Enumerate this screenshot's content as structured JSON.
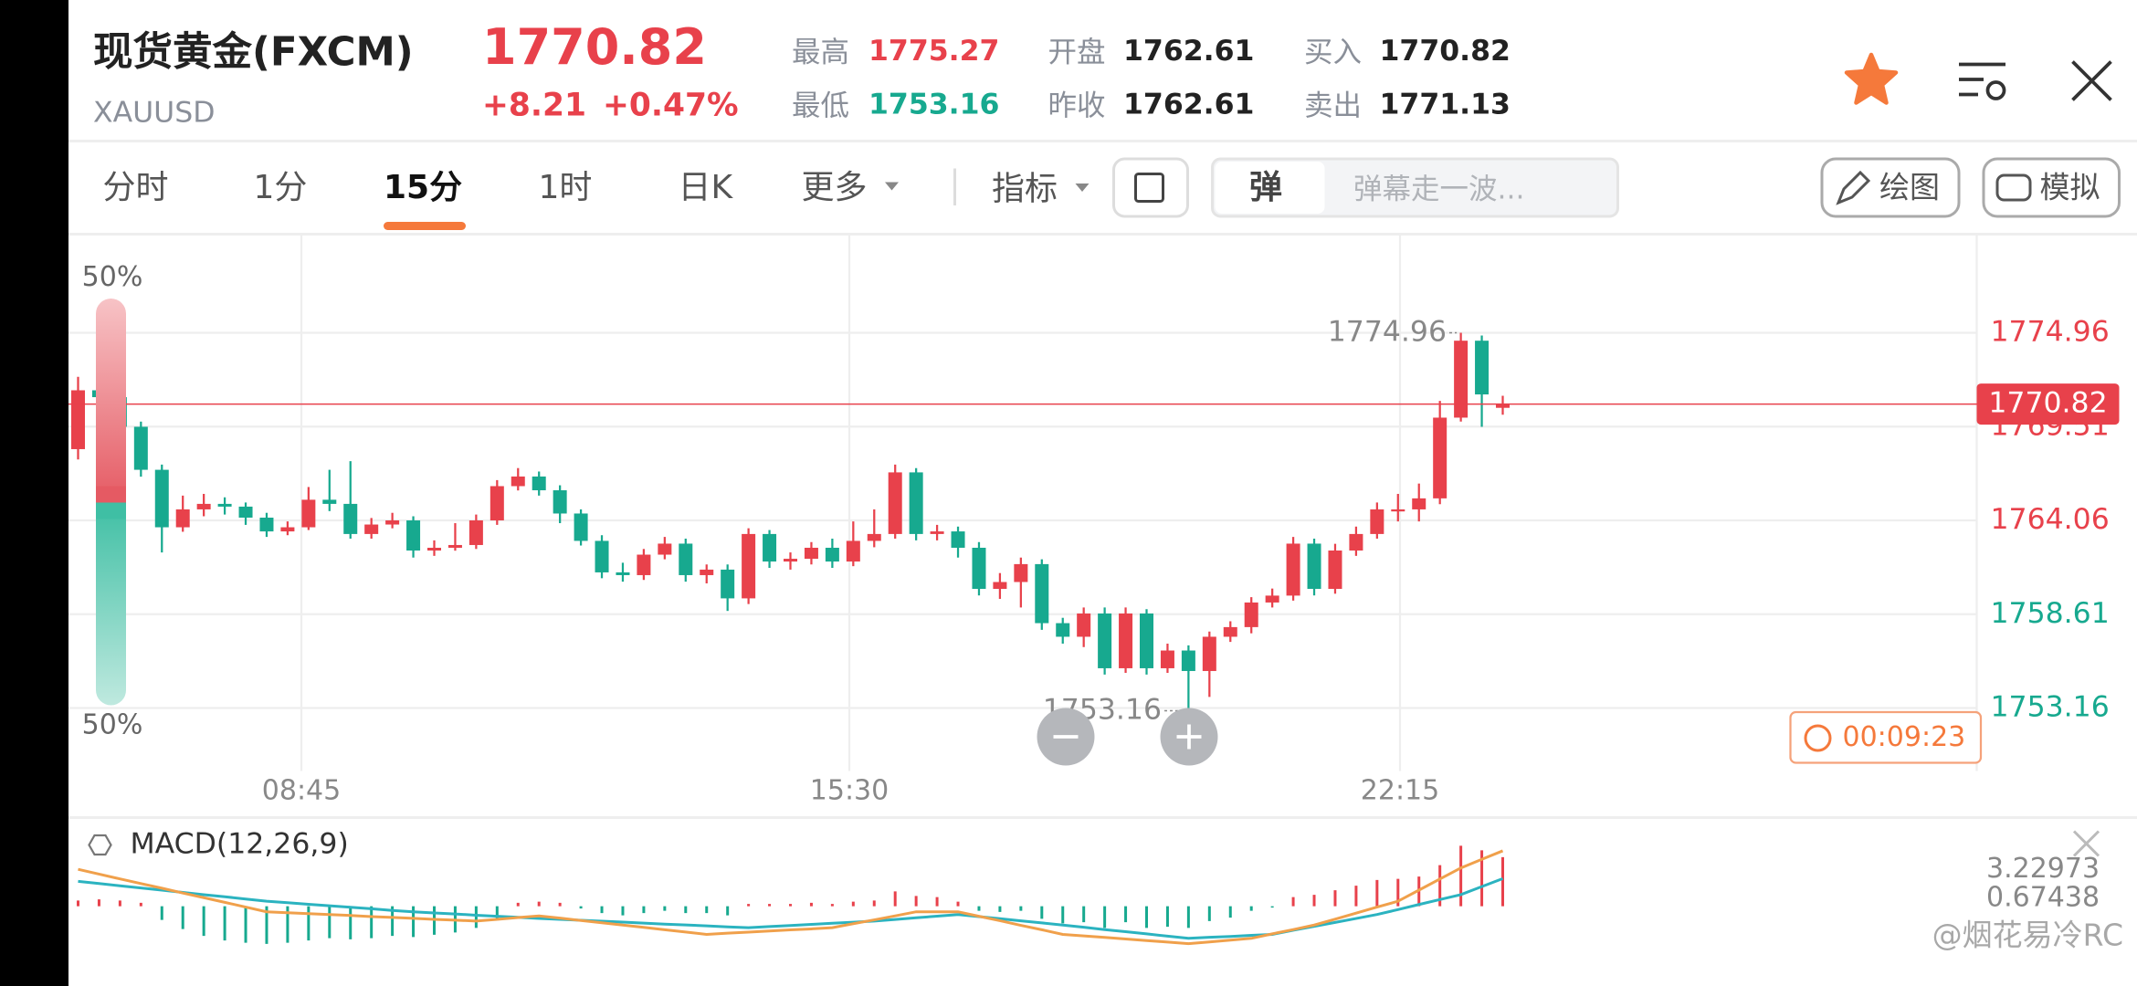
{
  "header": {
    "name": "现货黄金(FXCM)",
    "symbol": "XAUUSD",
    "price": "1770.82",
    "change": "+8.21",
    "change_pct": "+0.47%",
    "stats": [
      {
        "label": "最高",
        "value": "1775.27"
      },
      {
        "label": "最低",
        "value": "1753.16"
      },
      {
        "label": "开盘",
        "value": "1762.61"
      },
      {
        "label": "昨收",
        "value": "1762.61"
      },
      {
        "label": "买入",
        "value": "1770.82"
      },
      {
        "label": "卖出",
        "value": "1771.13"
      }
    ]
  },
  "tabs": [
    "分时",
    "1分",
    "15分",
    "1时",
    "日K",
    "更多"
  ],
  "active_tab": 2,
  "toolbar": {
    "indicator": "指标",
    "danmaku_icon": "弹",
    "danmaku_placeholder": "弹幕走一波...",
    "draw": "绘图",
    "simulate": "模拟"
  },
  "chart": {
    "left_labels": [
      "50%",
      "50%"
    ],
    "ylim": [
      1749.5,
      1780.61
    ],
    "yticks": [
      1774.96,
      1769.51,
      1764.06,
      1758.61,
      1753.16
    ],
    "grid": true,
    "current_price": 1770.82,
    "prev_close": 1762.61,
    "up_color": "#e8414b",
    "down_color": "#17a98f",
    "high_label": "1774.96",
    "low_label": "1753.16",
    "timer": "00:09:23",
    "time_labels": [
      "08:45",
      "15:30",
      "22:15"
    ],
    "candles": [
      [
        1768.2,
        1772.4,
        1767.6,
        1771.62
      ],
      [
        1771.62,
        1771.9,
        1770.9,
        1771.22
      ],
      [
        1771.22,
        1771.5,
        1769.1,
        1769.5
      ],
      [
        1769.5,
        1769.8,
        1766.6,
        1767.0
      ],
      [
        1767.0,
        1767.3,
        1762.2,
        1763.66
      ],
      [
        1763.66,
        1765.5,
        1763.4,
        1764.7
      ],
      [
        1764.7,
        1765.6,
        1764.3,
        1765.02
      ],
      [
        1765.02,
        1765.4,
        1764.4,
        1764.86
      ],
      [
        1764.86,
        1765.1,
        1763.8,
        1764.22
      ],
      [
        1764.22,
        1764.5,
        1763.1,
        1763.42
      ],
      [
        1763.42,
        1764.0,
        1763.2,
        1763.66
      ],
      [
        1763.66,
        1766.0,
        1763.5,
        1765.26
      ],
      [
        1765.26,
        1767.0,
        1764.6,
        1765.02
      ],
      [
        1765.02,
        1767.5,
        1763.0,
        1763.27
      ],
      [
        1763.27,
        1764.2,
        1763.0,
        1763.82
      ],
      [
        1763.82,
        1764.5,
        1763.6,
        1764.06
      ],
      [
        1764.06,
        1764.3,
        1761.9,
        1762.31
      ],
      [
        1762.31,
        1762.9,
        1762.0,
        1762.47
      ],
      [
        1762.47,
        1763.9,
        1762.3,
        1762.63
      ],
      [
        1762.63,
        1764.4,
        1762.4,
        1764.06
      ],
      [
        1764.06,
        1766.4,
        1763.8,
        1766.05
      ],
      [
        1766.05,
        1767.1,
        1765.8,
        1766.61
      ],
      [
        1766.61,
        1766.9,
        1765.5,
        1765.81
      ],
      [
        1765.81,
        1766.1,
        1763.9,
        1764.46
      ],
      [
        1764.46,
        1764.7,
        1762.6,
        1762.87
      ],
      [
        1762.87,
        1763.2,
        1760.7,
        1761.04
      ],
      [
        1761.04,
        1761.6,
        1760.5,
        1760.88
      ],
      [
        1760.88,
        1762.4,
        1760.6,
        1762.07
      ],
      [
        1762.07,
        1763.1,
        1761.8,
        1762.71
      ],
      [
        1762.71,
        1763.0,
        1760.5,
        1760.88
      ],
      [
        1760.88,
        1761.5,
        1760.4,
        1761.2
      ],
      [
        1761.2,
        1761.5,
        1758.8,
        1759.53
      ],
      [
        1759.53,
        1763.6,
        1759.2,
        1763.27
      ],
      [
        1763.27,
        1763.5,
        1761.3,
        1761.67
      ],
      [
        1761.67,
        1762.2,
        1761.2,
        1761.83
      ],
      [
        1761.83,
        1762.8,
        1761.5,
        1762.47
      ],
      [
        1762.47,
        1763.0,
        1761.3,
        1761.67
      ],
      [
        1761.67,
        1764.0,
        1761.4,
        1762.87
      ],
      [
        1762.87,
        1764.7,
        1762.5,
        1763.27
      ],
      [
        1763.27,
        1767.3,
        1763.0,
        1766.85
      ],
      [
        1766.85,
        1767.1,
        1762.9,
        1763.27
      ],
      [
        1763.27,
        1763.8,
        1762.9,
        1763.42
      ],
      [
        1763.42,
        1763.7,
        1761.9,
        1762.47
      ],
      [
        1762.47,
        1762.8,
        1759.7,
        1760.08
      ],
      [
        1760.08,
        1761.0,
        1759.5,
        1760.48
      ],
      [
        1760.48,
        1761.9,
        1759.0,
        1761.52
      ],
      [
        1761.52,
        1761.8,
        1757.7,
        1758.09
      ],
      [
        1758.09,
        1758.4,
        1756.9,
        1757.3
      ],
      [
        1757.3,
        1759.0,
        1756.7,
        1758.65
      ],
      [
        1758.65,
        1759.0,
        1755.1,
        1755.47
      ],
      [
        1755.47,
        1759.0,
        1755.2,
        1758.65
      ],
      [
        1758.65,
        1758.9,
        1755.1,
        1755.47
      ],
      [
        1755.47,
        1756.9,
        1755.2,
        1756.5
      ],
      [
        1756.5,
        1756.8,
        1753.16,
        1755.31
      ],
      [
        1755.31,
        1757.6,
        1753.8,
        1757.3
      ],
      [
        1757.3,
        1758.2,
        1757.0,
        1757.86
      ],
      [
        1757.86,
        1759.6,
        1757.5,
        1759.29
      ],
      [
        1759.29,
        1760.1,
        1759.0,
        1759.69
      ],
      [
        1759.69,
        1763.1,
        1759.4,
        1762.71
      ],
      [
        1762.71,
        1763.0,
        1759.7,
        1760.08
      ],
      [
        1760.08,
        1762.7,
        1759.8,
        1762.31
      ],
      [
        1762.31,
        1763.7,
        1762.0,
        1763.27
      ],
      [
        1763.27,
        1765.1,
        1763.0,
        1764.7
      ],
      [
        1764.7,
        1765.6,
        1764.0,
        1764.7
      ],
      [
        1764.7,
        1766.2,
        1764.0,
        1765.34
      ],
      [
        1765.34,
        1771.0,
        1765.0,
        1770.03
      ],
      [
        1770.03,
        1774.96,
        1769.8,
        1774.5
      ],
      [
        1774.5,
        1774.8,
        1769.5,
        1771.38
      ],
      [
        1770.6,
        1771.3,
        1770.2,
        1770.82
      ]
    ]
  },
  "macd": {
    "title": "MACD(12,26,9)",
    "ylim": [
      -6.99,
      7.41
    ],
    "yticks": [
      3.22973,
      0.67438
    ],
    "dif_color": "#f0a04b",
    "dea_color": "#2bb3c0",
    "hist": [
      0.5,
      0.6,
      0.5,
      0.3,
      -1.2,
      -2.0,
      -2.6,
      -3.0,
      -3.2,
      -3.3,
      -3.2,
      -3.0,
      -2.8,
      -2.9,
      -2.8,
      -2.6,
      -2.7,
      -2.5,
      -2.3,
      -1.9,
      -1.2,
      0.3,
      0.4,
      0.3,
      -0.2,
      -0.6,
      -0.8,
      -0.6,
      -0.4,
      -0.6,
      -0.6,
      -0.8,
      0.2,
      0.2,
      0.2,
      0.3,
      0.2,
      0.4,
      0.5,
      1.3,
      0.9,
      0.8,
      0.4,
      -0.4,
      -0.5,
      -0.4,
      -1.1,
      -1.5,
      -1.4,
      -1.9,
      -1.4,
      -1.9,
      -1.8,
      -1.9,
      -1.3,
      -1.0,
      -0.4,
      -0.1,
      0.8,
      1.0,
      1.4,
      1.8,
      2.3,
      2.4,
      2.6,
      3.6,
      5.3,
      4.9,
      4.3
    ],
    "dif": [
      3.23,
      2.82,
      2.4,
      1.99,
      1.58,
      1.16,
      0.75,
      0.34,
      -0.08,
      -0.49,
      -0.57,
      -0.65,
      -0.73,
      -0.81,
      -0.9,
      -0.98,
      -1.06,
      -1.14,
      -1.22,
      -1.3,
      -1.15,
      -0.99,
      -0.84,
      -1.04,
      -1.25,
      -1.45,
      -1.65,
      -1.85,
      -2.06,
      -2.26,
      -2.46,
      -2.36,
      -2.27,
      -2.17,
      -2.07,
      -1.98,
      -1.88,
      -1.53,
      -1.19,
      -0.84,
      -0.49,
      -0.49,
      -0.49,
      -0.88,
      -1.27,
      -1.67,
      -2.06,
      -2.46,
      -2.6,
      -2.73,
      -2.87,
      -3.01,
      -3.14,
      -3.28,
      -3.12,
      -2.97,
      -2.81,
      -2.42,
      -2.04,
      -1.65,
      -1.13,
      -0.6,
      -0.08,
      0.44,
      1.41,
      2.38,
      3.35,
      4.11,
      4.86
    ],
    "dea": [
      2.18,
      1.99,
      1.79,
      1.6,
      1.41,
      1.21,
      1.02,
      0.83,
      0.63,
      0.44,
      0.31,
      0.18,
      0.04,
      -0.09,
      -0.22,
      -0.36,
      -0.49,
      -0.59,
      -0.68,
      -0.78,
      -0.88,
      -0.97,
      -1.07,
      -1.15,
      -1.23,
      -1.31,
      -1.39,
      -1.48,
      -1.56,
      -1.64,
      -1.72,
      -1.8,
      -1.88,
      -1.78,
      -1.69,
      -1.59,
      -1.49,
      -1.4,
      -1.3,
      -1.16,
      -1.01,
      -0.87,
      -0.72,
      -0.91,
      -1.09,
      -1.28,
      -1.46,
      -1.65,
      -1.84,
      -2.04,
      -2.23,
      -2.42,
      -2.62,
      -2.81,
      -2.72,
      -2.64,
      -2.55,
      -2.46,
      -2.11,
      -1.76,
      -1.42,
      -1.07,
      -0.72,
      -0.29,
      0.15,
      0.58,
      1.02,
      1.72,
      2.42
    ]
  },
  "watermark": "@烟花易冷RC"
}
